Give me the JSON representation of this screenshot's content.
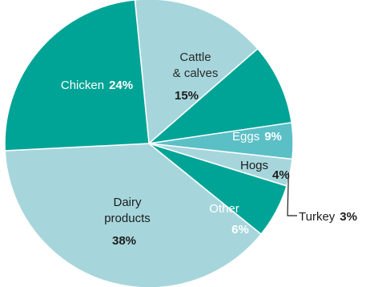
{
  "chart_data": {
    "type": "pie",
    "slices": [
      {
        "label_lines": [
          "Cattle",
          "& calves"
        ],
        "value": 15,
        "value_text": "15%",
        "color": "#a6d6dc"
      },
      {
        "label_lines": [
          "Eggs"
        ],
        "value": 9,
        "value_text": "9%",
        "color": "#00a496"
      },
      {
        "label_lines": [
          "Hogs"
        ],
        "value": 4,
        "value_text": "4%",
        "color": "#5bbfc6"
      },
      {
        "label_lines": [
          "Turkey"
        ],
        "value": 3,
        "value_text": "3%",
        "color": "#a6d6dc"
      },
      {
        "label_lines": [
          "Other"
        ],
        "value": 6,
        "value_text": "6%",
        "color": "#00a496"
      },
      {
        "label_lines": [
          "Dairy",
          "products"
        ],
        "value": 38,
        "value_text": "38%",
        "color": "#a6d6dc"
      },
      {
        "label_lines": [
          "Chicken"
        ],
        "value": 24,
        "value_text": "24%",
        "color": "#00a496"
      }
    ]
  }
}
